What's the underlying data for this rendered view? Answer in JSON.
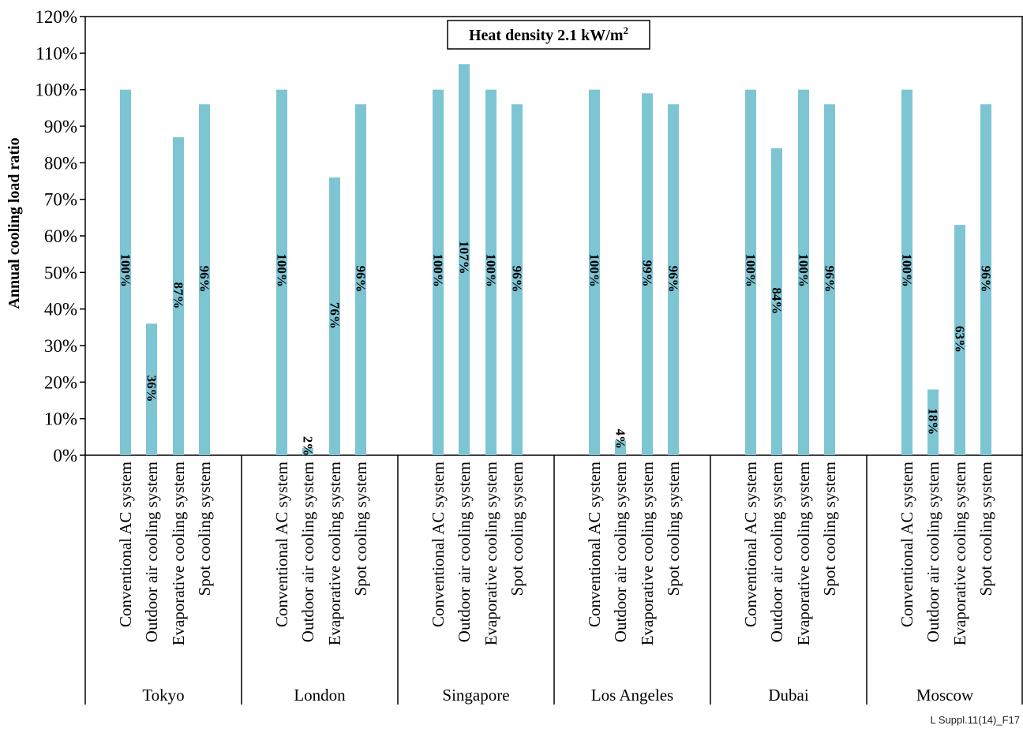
{
  "chart_data": {
    "type": "bar",
    "title": "Heat density 2.1 kW/m",
    "title_superscript": "2",
    "ylabel": "Annual cooling load ratio",
    "ylim": [
      0,
      120
    ],
    "yticks": [
      "0%",
      "10%",
      "20%",
      "30%",
      "40%",
      "50%",
      "60%",
      "70%",
      "80%",
      "90%",
      "100%",
      "110%",
      "120%"
    ],
    "bar_color": "#7ec5d4",
    "grid": false,
    "groups": [
      {
        "name": "Tokyo",
        "bars": [
          {
            "category": "Conventional AC system",
            "value": 100,
            "label": "100%"
          },
          {
            "category": "Outdoor air cooling system",
            "value": 36,
            "label": "36%"
          },
          {
            "category": "Evaporative cooling system",
            "value": 87,
            "label": "87%"
          },
          {
            "category": "Spot cooling system",
            "value": 96,
            "label": "96%"
          }
        ]
      },
      {
        "name": "London",
        "bars": [
          {
            "category": "Conventional AC system",
            "value": 100,
            "label": "100%"
          },
          {
            "category": "Outdoor air cooling system",
            "value": 2,
            "label": "2%"
          },
          {
            "category": "Evaporative cooling system",
            "value": 76,
            "label": "76%"
          },
          {
            "category": "Spot cooling system",
            "value": 96,
            "label": "96%"
          }
        ]
      },
      {
        "name": "Singapore",
        "bars": [
          {
            "category": "Conventional AC system",
            "value": 100,
            "label": "100%"
          },
          {
            "category": "Outdoor air cooling system",
            "value": 107,
            "label": "107%"
          },
          {
            "category": "Evaporative cooling system",
            "value": 100,
            "label": "100%"
          },
          {
            "category": "Spot cooling system",
            "value": 96,
            "label": "96%"
          }
        ]
      },
      {
        "name": "Los Angeles",
        "bars": [
          {
            "category": "Conventional AC system",
            "value": 100,
            "label": "100%"
          },
          {
            "category": "Outdoor air cooling system",
            "value": 4,
            "label": "4%"
          },
          {
            "category": "Evaporative cooling system",
            "value": 99,
            "label": "99%"
          },
          {
            "category": "Spot cooling system",
            "value": 96,
            "label": "96%"
          }
        ]
      },
      {
        "name": "Dubai",
        "bars": [
          {
            "category": "Conventional AC system",
            "value": 100,
            "label": "100%"
          },
          {
            "category": "Outdoor air cooling system",
            "value": 84,
            "label": "84%"
          },
          {
            "category": "Evaporative cooling system",
            "value": 100,
            "label": "100%"
          },
          {
            "category": "Spot cooling system",
            "value": 96,
            "label": "96%"
          }
        ]
      },
      {
        "name": "Moscow",
        "bars": [
          {
            "category": "Conventional AC system",
            "value": 100,
            "label": "100%"
          },
          {
            "category": "Outdoor air cooling system",
            "value": 18,
            "label": "18%"
          },
          {
            "category": "Evaporative cooling system",
            "value": 63,
            "label": "63%"
          },
          {
            "category": "Spot cooling system",
            "value": 96,
            "label": "96%"
          }
        ]
      }
    ],
    "footnote": "L Suppl.11(14)_F17"
  }
}
